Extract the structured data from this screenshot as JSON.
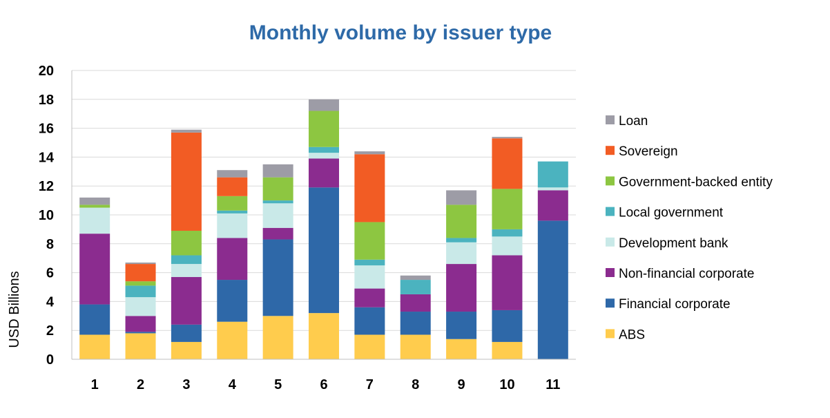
{
  "chart_data": {
    "type": "bar",
    "stacked": true,
    "title": "Monthly volume by issuer type",
    "xlabel": "",
    "ylabel": "USD Billions",
    "ylim": [
      0,
      20
    ],
    "yticks": [
      "0",
      "2",
      "4",
      "6",
      "8",
      "10",
      "12",
      "14",
      "16",
      "18",
      "20"
    ],
    "grid": true,
    "legend_position": "right",
    "categories": [
      "1",
      "2",
      "3",
      "4",
      "5",
      "6",
      "7",
      "8",
      "9",
      "10",
      "11"
    ],
    "series": [
      {
        "name": "ABS",
        "color": "#ffcc4d",
        "values": [
          1.7,
          1.8,
          1.2,
          2.6,
          3.0,
          3.2,
          1.7,
          1.7,
          1.4,
          1.2,
          0
        ]
      },
      {
        "name": "Financial corporate",
        "color": "#2e68a8",
        "values": [
          2.1,
          0.1,
          1.2,
          2.9,
          5.3,
          8.7,
          1.9,
          1.6,
          1.9,
          2.2,
          9.6
        ]
      },
      {
        "name": "Non-financial corporate",
        "color": "#8b2c8f",
        "values": [
          4.9,
          1.1,
          3.3,
          2.9,
          0.8,
          2.0,
          1.3,
          1.2,
          3.3,
          3.8,
          2.1
        ]
      },
      {
        "name": "Development bank",
        "color": "#c9e9e8",
        "values": [
          1.8,
          1.3,
          0.9,
          1.7,
          1.7,
          0.4,
          1.6,
          0,
          1.5,
          1.3,
          0.2
        ]
      },
      {
        "name": "Local government",
        "color": "#4bb3bf",
        "values": [
          0,
          0.8,
          0.6,
          0.2,
          0.2,
          0.4,
          0.4,
          1.0,
          0.3,
          0.5,
          1.8
        ]
      },
      {
        "name": "Government-backed entity",
        "color": "#8dc641",
        "values": [
          0.2,
          0.3,
          1.7,
          1.0,
          1.6,
          2.5,
          2.6,
          0,
          2.3,
          2.8,
          0
        ]
      },
      {
        "name": "Sovereign",
        "color": "#f25c24",
        "values": [
          0,
          1.2,
          6.8,
          1.3,
          0,
          0,
          4.7,
          0,
          0,
          3.5,
          0
        ]
      },
      {
        "name": "Loan",
        "color": "#9d9ca6",
        "values": [
          0.5,
          0.1,
          0.2,
          0.5,
          0.9,
          0.8,
          0.2,
          0.3,
          1.0,
          0.1,
          0
        ]
      }
    ],
    "legend_order": [
      "Loan",
      "Sovereign",
      "Government-backed entity",
      "Local government",
      "Development bank",
      "Non-financial corporate",
      "Financial corporate",
      "ABS"
    ]
  }
}
